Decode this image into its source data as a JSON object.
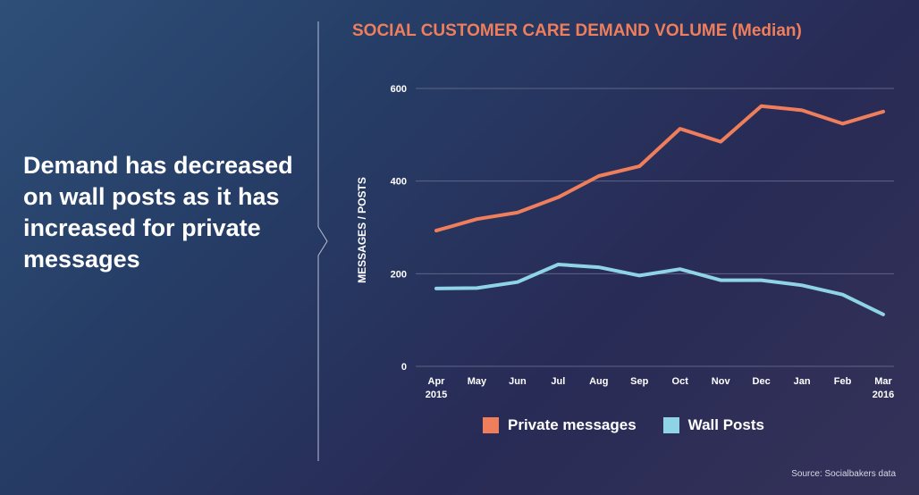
{
  "headline": "Demand has decreased on wall posts as it has increased for private messages",
  "source": "Source: Socialbakers data",
  "colors": {
    "private_messages": "#ef7e5c",
    "wall_posts": "#8fd3e6",
    "title": "#ef7e5c",
    "grid": "#5f6486"
  },
  "chart_data": {
    "type": "line",
    "title": "SOCIAL CUSTOMER CARE DEMAND VOLUME (Median)",
    "xlabel": "",
    "ylabel": "MESSAGES / POSTS",
    "ylim": [
      0,
      600
    ],
    "yticks": [
      0,
      200,
      400,
      600
    ],
    "grid": true,
    "legend_position": "bottom",
    "categories": [
      "Apr\n2015",
      "May",
      "Jun",
      "Jul",
      "Aug",
      "Sep",
      "Oct",
      "Nov",
      "Dec",
      "Jan",
      "Feb",
      "Mar\n2016"
    ],
    "series": [
      {
        "name": "Private messages",
        "color": "#ef7e5c",
        "values": [
          293,
          318,
          332,
          365,
          411,
          432,
          513,
          485,
          562,
          553,
          524,
          550
        ]
      },
      {
        "name": "Wall Posts",
        "color": "#8fd3e6",
        "values": [
          168,
          169,
          182,
          220,
          214,
          196,
          210,
          186,
          186,
          175,
          155,
          112
        ]
      }
    ]
  }
}
